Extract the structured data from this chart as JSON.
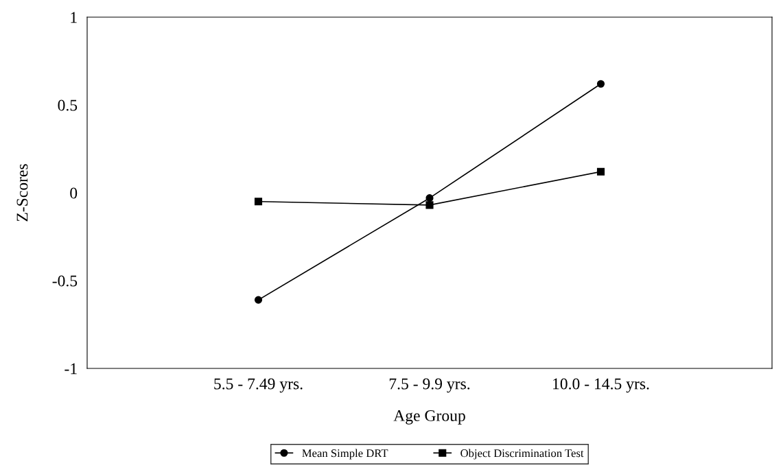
{
  "chart_data": {
    "type": "line",
    "xlabel": "Age Group",
    "ylabel": "Z-Scores",
    "categories": [
      "5.5 - 7.49 yrs.",
      "7.5 - 9.9 yrs.",
      "10.0 - 14.5 yrs."
    ],
    "series": [
      {
        "name": "Mean Simple DRT",
        "color": "#000000",
        "values": [
          -0.61,
          -0.03,
          0.62
        ],
        "marker": "circle"
      },
      {
        "name": "Object Discrimination Test",
        "color": "#000000",
        "values": [
          -0.05,
          -0.07,
          0.12
        ],
        "marker": "square"
      }
    ],
    "ylim": [
      -1,
      1
    ],
    "yticks": [
      -1,
      -0.5,
      0,
      0.5,
      1
    ],
    "grid": false,
    "legend": "bottom",
    "line_style": "solid"
  }
}
